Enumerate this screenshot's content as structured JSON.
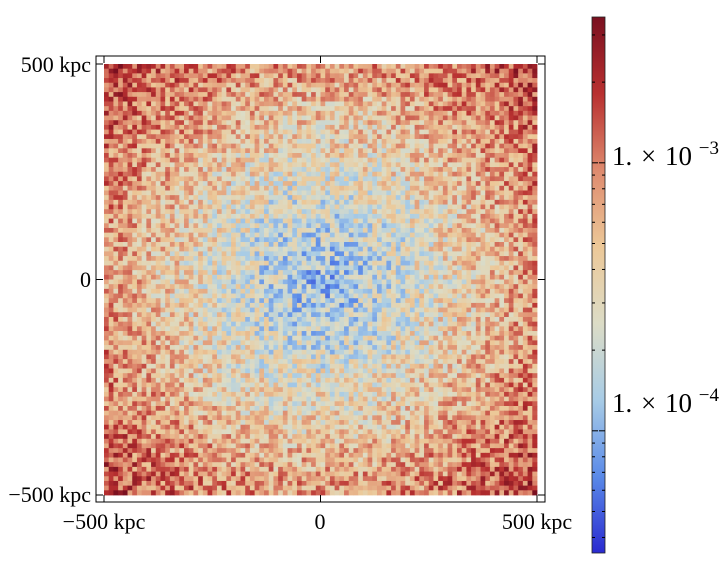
{
  "chart_data": {
    "type": "heatmap",
    "title": "",
    "xlabel": "",
    "ylabel": "",
    "x_unit": "kpc",
    "y_unit": "kpc",
    "xlim": [
      -500,
      500
    ],
    "ylim": [
      -500,
      500
    ],
    "x_ticks": [
      {
        "value": -500,
        "label": "−500 kpc"
      },
      {
        "value": 0,
        "label": "0"
      },
      {
        "value": 500,
        "label": "500 kpc"
      }
    ],
    "y_ticks": [
      {
        "value": 500,
        "label": "500 kpc"
      },
      {
        "value": 0,
        "label": "0"
      },
      {
        "value": -500,
        "label": "−500 kpc"
      }
    ],
    "colorbar": {
      "scale": "log",
      "range": [
        3.5e-05,
        0.0035
      ],
      "colormap": [
        "#2a2ad0",
        "#5a8ae8",
        "#a8cce6",
        "#dcdcc6",
        "#ecc898",
        "#de8a6e",
        "#b83030",
        "#7a1020"
      ],
      "ticks": [
        {
          "value": 0.001,
          "mantissa": "1.",
          "times": "×",
          "base": "10",
          "exponent": "−3"
        },
        {
          "value": 0.0001,
          "mantissa": "1.",
          "times": "×",
          "base": "10",
          "exponent": "−4"
        }
      ]
    },
    "field_description_values": {
      "center_value": 0.00012,
      "edge_value": 0.0011,
      "corner_value": 0.0018
    },
    "grid": false,
    "legend": "none"
  },
  "colors": {
    "frame": "#000000",
    "background": "#ffffff"
  }
}
